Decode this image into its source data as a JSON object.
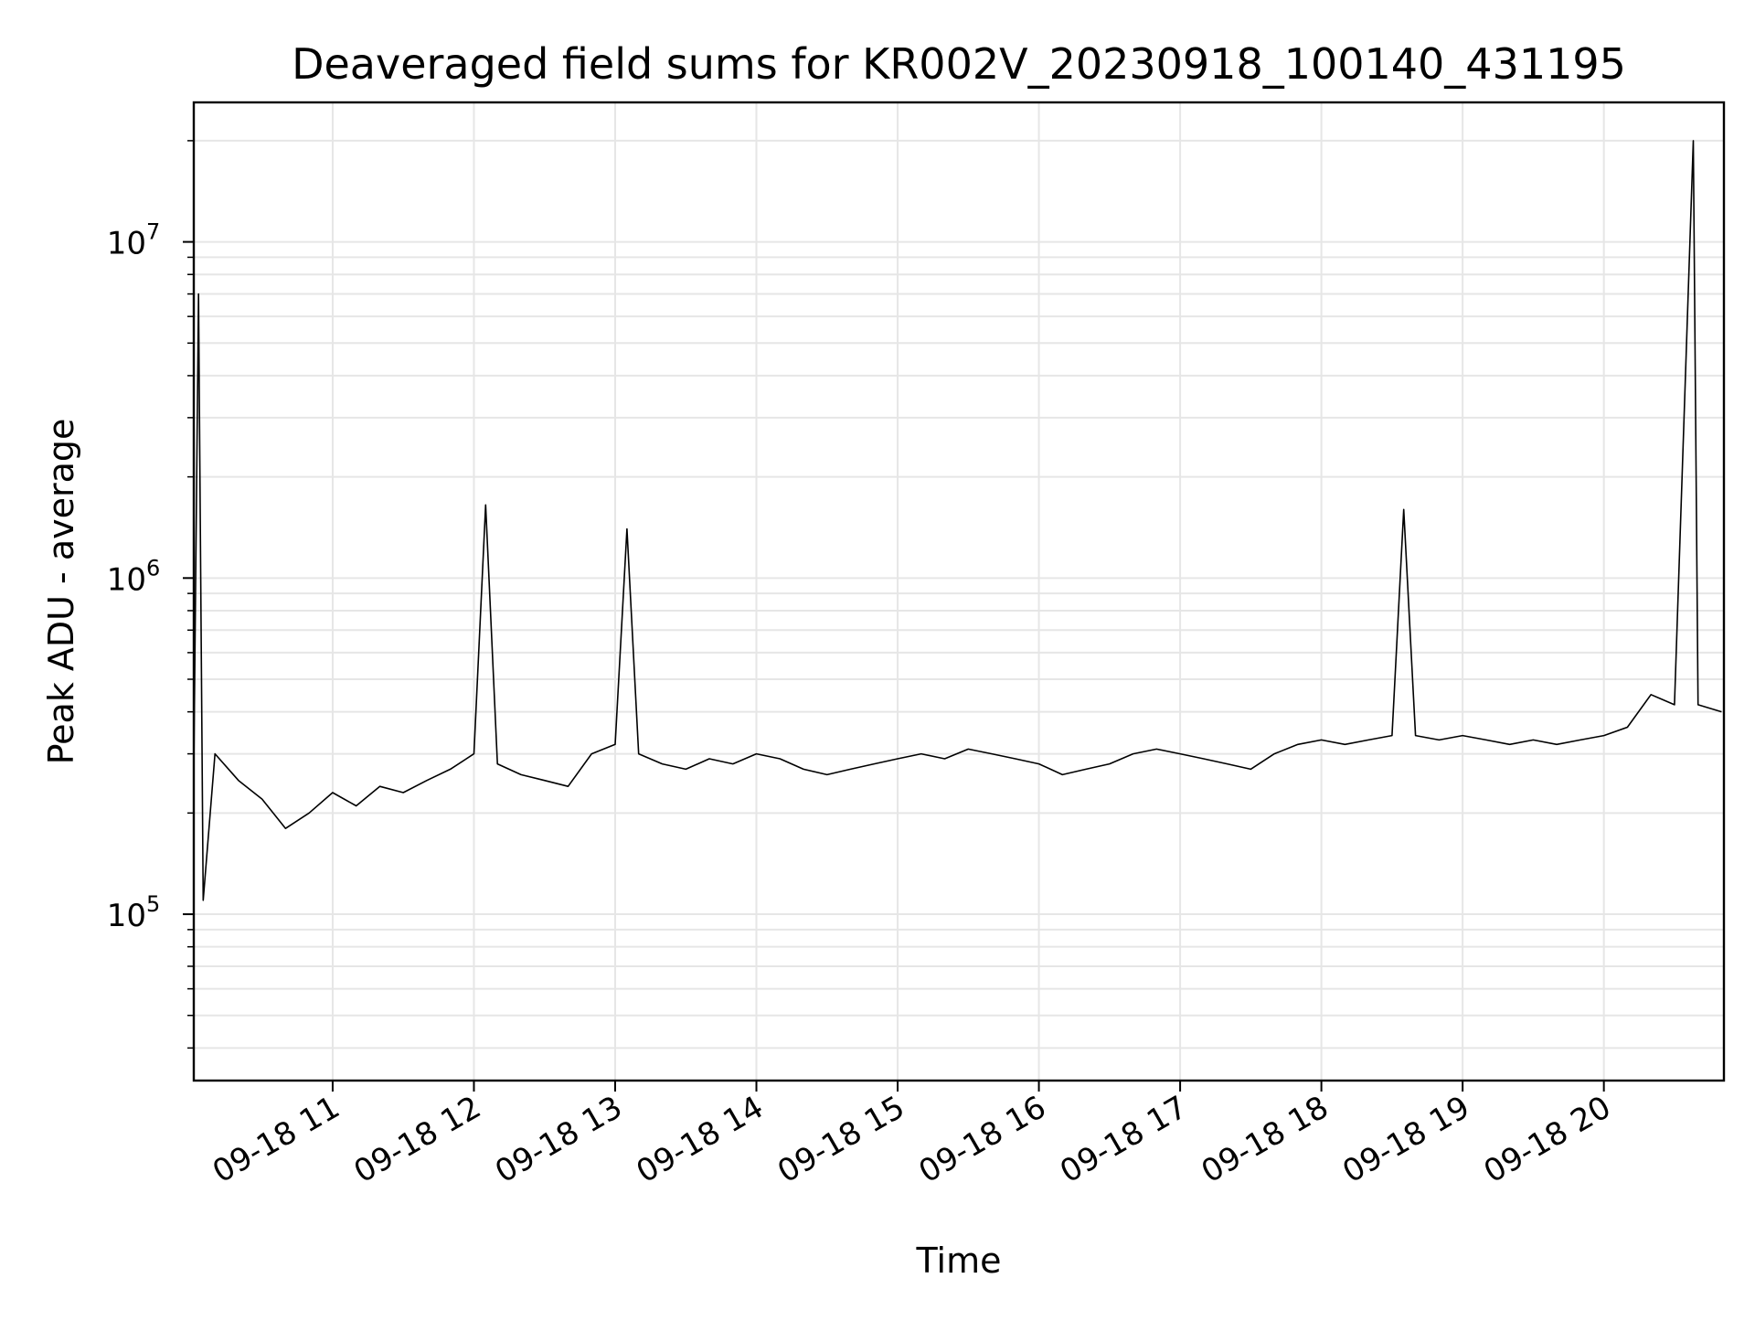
{
  "chart_data": {
    "type": "line",
    "title": "Deaveraged field sums for KR002V_20230918_100140_431195",
    "xlabel": "Time",
    "ylabel": "Peak ADU - average",
    "y_scale": "log",
    "ylim": [
      32000,
      26000000
    ],
    "xlim": [
      "09-18 10:01",
      "09-18 20:51"
    ],
    "grid": true,
    "legend": "none",
    "line_color": "#000000",
    "x_ticks": [
      "09-18 11",
      "09-18 12",
      "09-18 13",
      "09-18 14",
      "09-18 15",
      "09-18 16",
      "09-18 17",
      "09-18 18",
      "09-18 19",
      "09-18 20"
    ],
    "y_ticks": [
      {
        "value": 100000,
        "base": "10",
        "exp": "5"
      },
      {
        "value": 1000000,
        "base": "10",
        "exp": "6"
      },
      {
        "value": 10000000,
        "base": "10",
        "exp": "7"
      }
    ],
    "series": [
      {
        "points": [
          [
            "09-18 10:01",
            270000
          ],
          [
            "09-18 10:03",
            7000000
          ],
          [
            "09-18 10:05",
            110000
          ],
          [
            "09-18 10:10",
            300000
          ],
          [
            "09-18 10:20",
            250000
          ],
          [
            "09-18 10:30",
            220000
          ],
          [
            "09-18 10:40",
            180000
          ],
          [
            "09-18 10:50",
            200000
          ],
          [
            "09-18 11:00",
            230000
          ],
          [
            "09-18 11:10",
            210000
          ],
          [
            "09-18 11:20",
            240000
          ],
          [
            "09-18 11:30",
            230000
          ],
          [
            "09-18 11:40",
            250000
          ],
          [
            "09-18 11:50",
            270000
          ],
          [
            "09-18 12:00",
            300000
          ],
          [
            "09-18 12:05",
            1650000
          ],
          [
            "09-18 12:10",
            280000
          ],
          [
            "09-18 12:20",
            260000
          ],
          [
            "09-18 12:30",
            250000
          ],
          [
            "09-18 12:40",
            240000
          ],
          [
            "09-18 12:50",
            300000
          ],
          [
            "09-18 13:00",
            320000
          ],
          [
            "09-18 13:05",
            1400000
          ],
          [
            "09-18 13:10",
            300000
          ],
          [
            "09-18 13:20",
            280000
          ],
          [
            "09-18 13:30",
            270000
          ],
          [
            "09-18 13:40",
            290000
          ],
          [
            "09-18 13:50",
            280000
          ],
          [
            "09-18 14:00",
            300000
          ],
          [
            "09-18 14:10",
            290000
          ],
          [
            "09-18 14:20",
            270000
          ],
          [
            "09-18 14:30",
            260000
          ],
          [
            "09-18 14:40",
            270000
          ],
          [
            "09-18 14:50",
            280000
          ],
          [
            "09-18 15:00",
            290000
          ],
          [
            "09-18 15:10",
            300000
          ],
          [
            "09-18 15:20",
            290000
          ],
          [
            "09-18 15:30",
            310000
          ],
          [
            "09-18 15:40",
            300000
          ],
          [
            "09-18 15:50",
            290000
          ],
          [
            "09-18 16:00",
            280000
          ],
          [
            "09-18 16:10",
            260000
          ],
          [
            "09-18 16:20",
            270000
          ],
          [
            "09-18 16:30",
            280000
          ],
          [
            "09-18 16:40",
            300000
          ],
          [
            "09-18 16:50",
            310000
          ],
          [
            "09-18 17:00",
            300000
          ],
          [
            "09-18 17:10",
            290000
          ],
          [
            "09-18 17:20",
            280000
          ],
          [
            "09-18 17:30",
            270000
          ],
          [
            "09-18 17:40",
            300000
          ],
          [
            "09-18 17:50",
            320000
          ],
          [
            "09-18 18:00",
            330000
          ],
          [
            "09-18 18:10",
            320000
          ],
          [
            "09-18 18:20",
            330000
          ],
          [
            "09-18 18:30",
            340000
          ],
          [
            "09-18 18:35",
            1600000
          ],
          [
            "09-18 18:40",
            340000
          ],
          [
            "09-18 18:50",
            330000
          ],
          [
            "09-18 19:00",
            340000
          ],
          [
            "09-18 19:10",
            330000
          ],
          [
            "09-18 19:20",
            320000
          ],
          [
            "09-18 19:30",
            330000
          ],
          [
            "09-18 19:40",
            320000
          ],
          [
            "09-18 19:50",
            330000
          ],
          [
            "09-18 20:00",
            340000
          ],
          [
            "09-18 20:10",
            360000
          ],
          [
            "09-18 20:20",
            450000
          ],
          [
            "09-18 20:30",
            420000
          ],
          [
            "09-18 20:38",
            20000000
          ],
          [
            "09-18 20:40",
            420000
          ],
          [
            "09-18 20:50",
            400000
          ]
        ]
      }
    ]
  }
}
